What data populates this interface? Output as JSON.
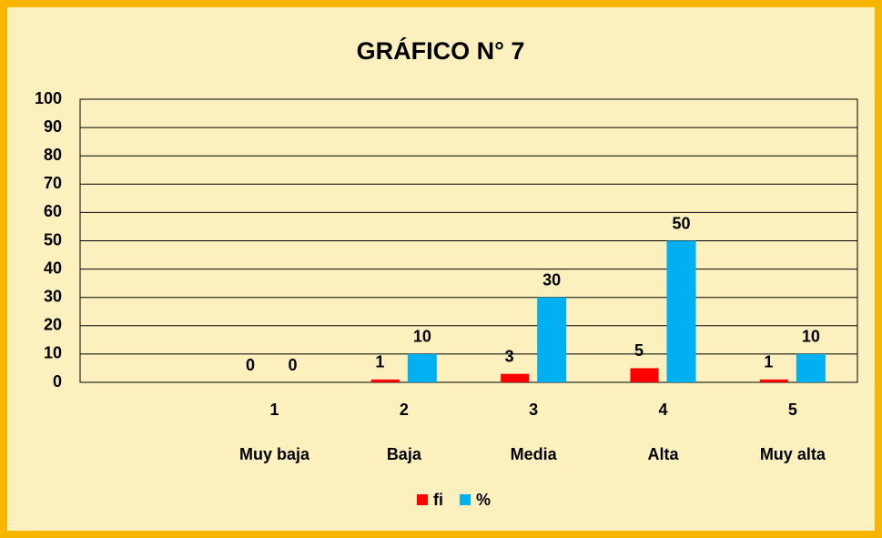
{
  "chart_data": {
    "type": "bar",
    "title": "GRÁFICO N° 7",
    "categories": [
      null,
      "1",
      "2",
      "3",
      "4",
      "5"
    ],
    "category_names": [
      null,
      "Muy baja",
      "Baja",
      "Media",
      "Alta",
      "Muy alta"
    ],
    "series": [
      {
        "name": "fi",
        "color": "#ff0000",
        "values": [
          null,
          0,
          1,
          3,
          5,
          1
        ]
      },
      {
        "name": "%",
        "color": "#00b0f0",
        "values": [
          null,
          0,
          10,
          30,
          50,
          10
        ]
      }
    ],
    "ylim": [
      0,
      100
    ],
    "yticks": [
      0,
      10,
      20,
      30,
      40,
      50,
      60,
      70,
      80,
      90,
      100
    ],
    "grid": true,
    "legend": "bottom"
  }
}
